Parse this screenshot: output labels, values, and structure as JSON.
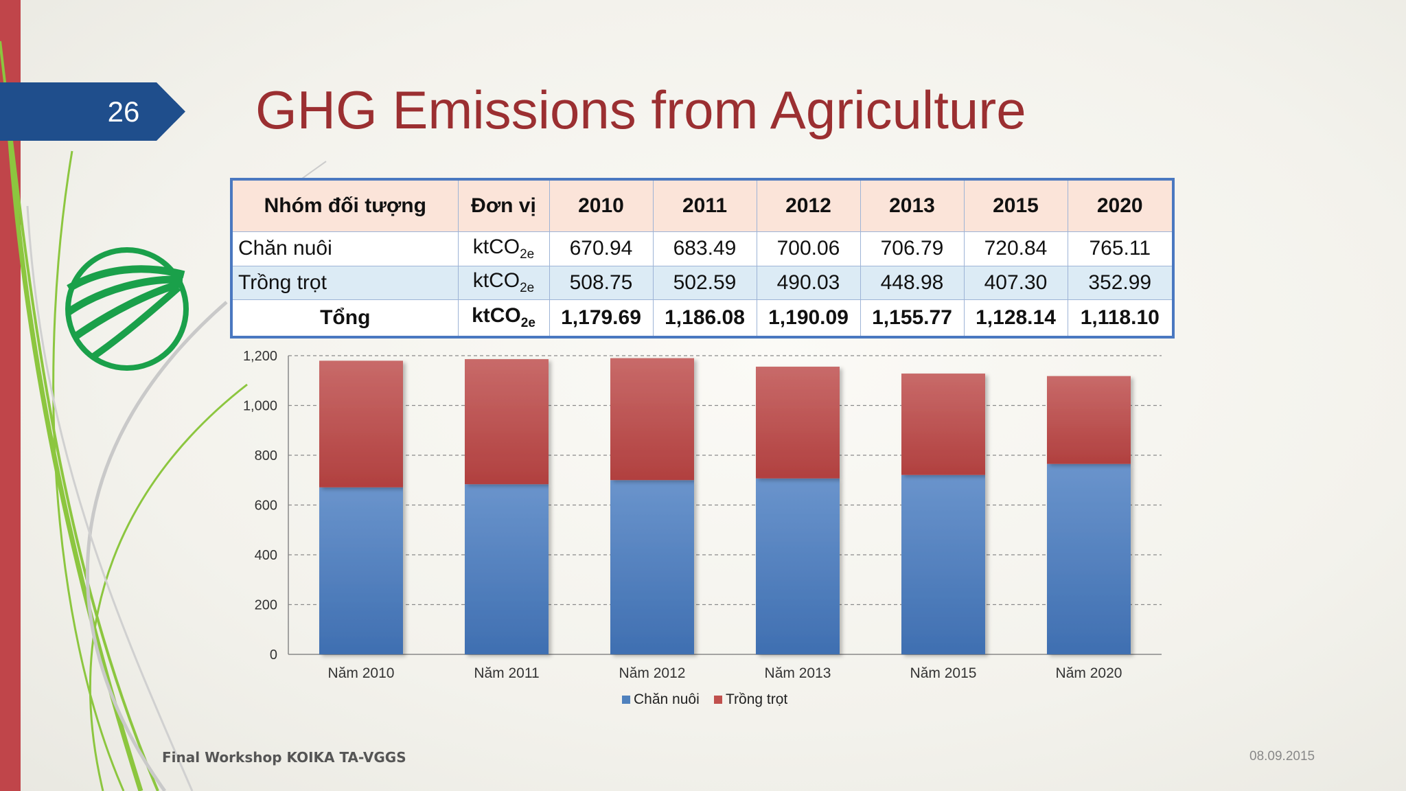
{
  "slide": {
    "number": "26",
    "title": "GHG Emissions from Agriculture",
    "footer_left": "Final Workshop KOIKA TA-VGGS",
    "footer_right": "08.09.2015"
  },
  "table": {
    "headers": [
      "Nhóm đối tượng",
      "Đơn vị",
      "2010",
      "2011",
      "2012",
      "2013",
      "2015",
      "2020"
    ],
    "unit_base": "ktCO",
    "unit_sub": "2e",
    "rows": [
      {
        "label": "Chăn nuôi",
        "values": [
          "670.94",
          "683.49",
          "700.06",
          "706.79",
          "720.84",
          "765.11"
        ]
      },
      {
        "label": "Trồng trọt",
        "values": [
          "508.75",
          "502.59",
          "490.03",
          "448.98",
          "407.30",
          "352.99"
        ]
      },
      {
        "label": "Tổng",
        "values": [
          "1,179.69",
          "1,186.08",
          "1,190.09",
          "1,155.77",
          "1,128.14",
          "1,118.10"
        ]
      }
    ]
  },
  "chart_data": {
    "type": "bar",
    "stacked": true,
    "categories": [
      "Năm 2010",
      "Năm 2011",
      "Năm 2012",
      "Năm 2013",
      "Năm 2015",
      "Năm 2020"
    ],
    "series": [
      {
        "name": "Chăn nuôi",
        "values": [
          670.94,
          683.49,
          700.06,
          706.79,
          720.84,
          765.11
        ],
        "color": "#4f81bd"
      },
      {
        "name": "Trồng trọt",
        "values": [
          508.75,
          502.59,
          490.03,
          448.98,
          407.3,
          352.99
        ],
        "color": "#c0504d"
      }
    ],
    "ylim": [
      0,
      1200
    ],
    "yticks": [
      0,
      200,
      400,
      600,
      800,
      1000,
      1200
    ],
    "ytick_labels": [
      "0",
      "200",
      "400",
      "600",
      "800",
      "1,000",
      "1,200"
    ],
    "grid": true,
    "legend": "bottom"
  }
}
